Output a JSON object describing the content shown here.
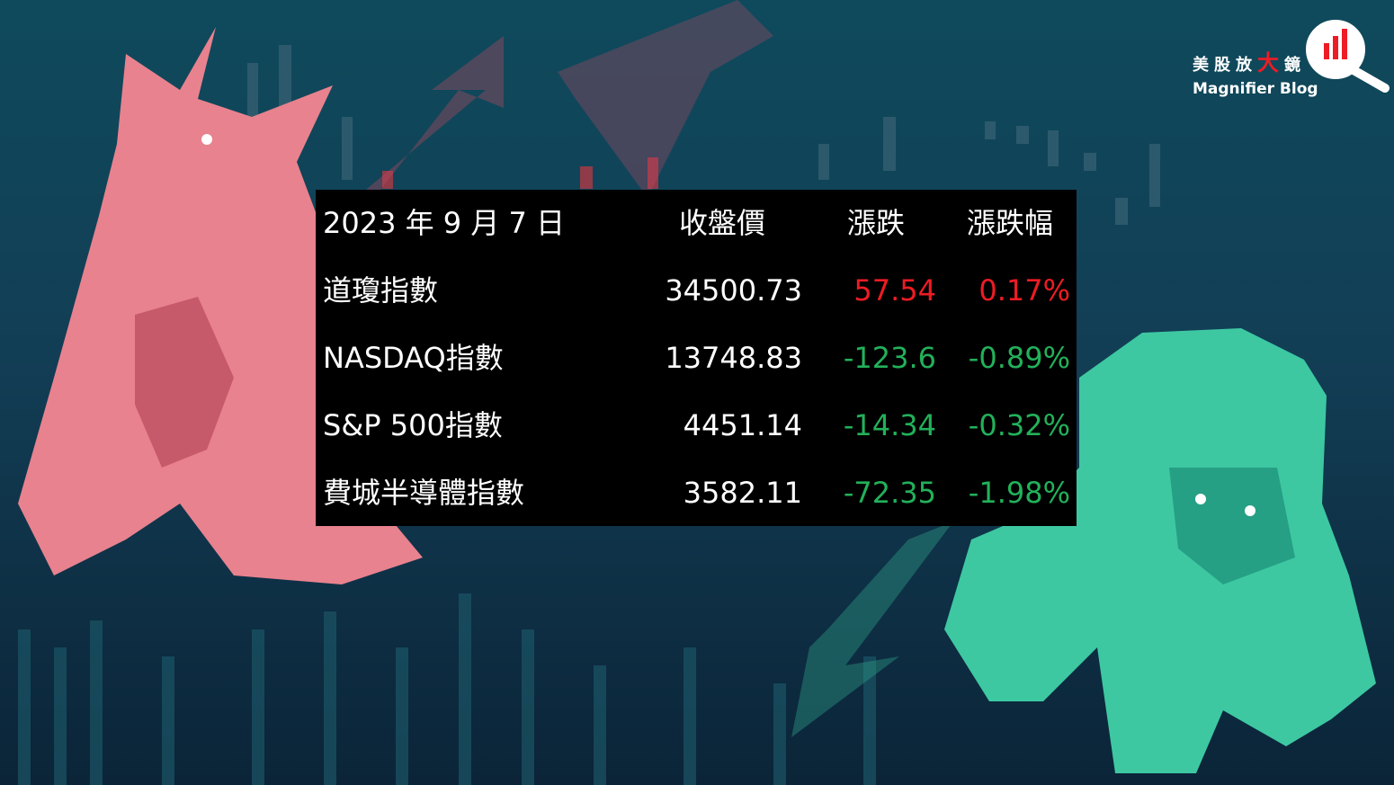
{
  "logo": {
    "title": [
      "美股放",
      "大",
      "鏡"
    ],
    "subtitle": "Magnifier Blog"
  },
  "table": {
    "header": [
      "2023 年 9 月 7 日",
      "收盤價",
      "漲跌",
      "漲跌幅"
    ],
    "rows": [
      {
        "name": "道瓊指數",
        "close": "34500.73",
        "change": "57.54",
        "pct": "0.17%",
        "color": "#ee1c24"
      },
      {
        "name": "NASDAQ指數",
        "close": "13748.83",
        "change": "-123.6",
        "pct": "-0.89%",
        "color": "#22b15a"
      },
      {
        "name": "S&P 500指數",
        "close": "4451.14",
        "change": "-14.34",
        "pct": "-0.32%",
        "color": "#22b15a"
      },
      {
        "name": "費城半導體指數",
        "close": "3582.11",
        "change": "-72.35",
        "pct": "-1.98%",
        "color": "#22b15a"
      }
    ]
  }
}
